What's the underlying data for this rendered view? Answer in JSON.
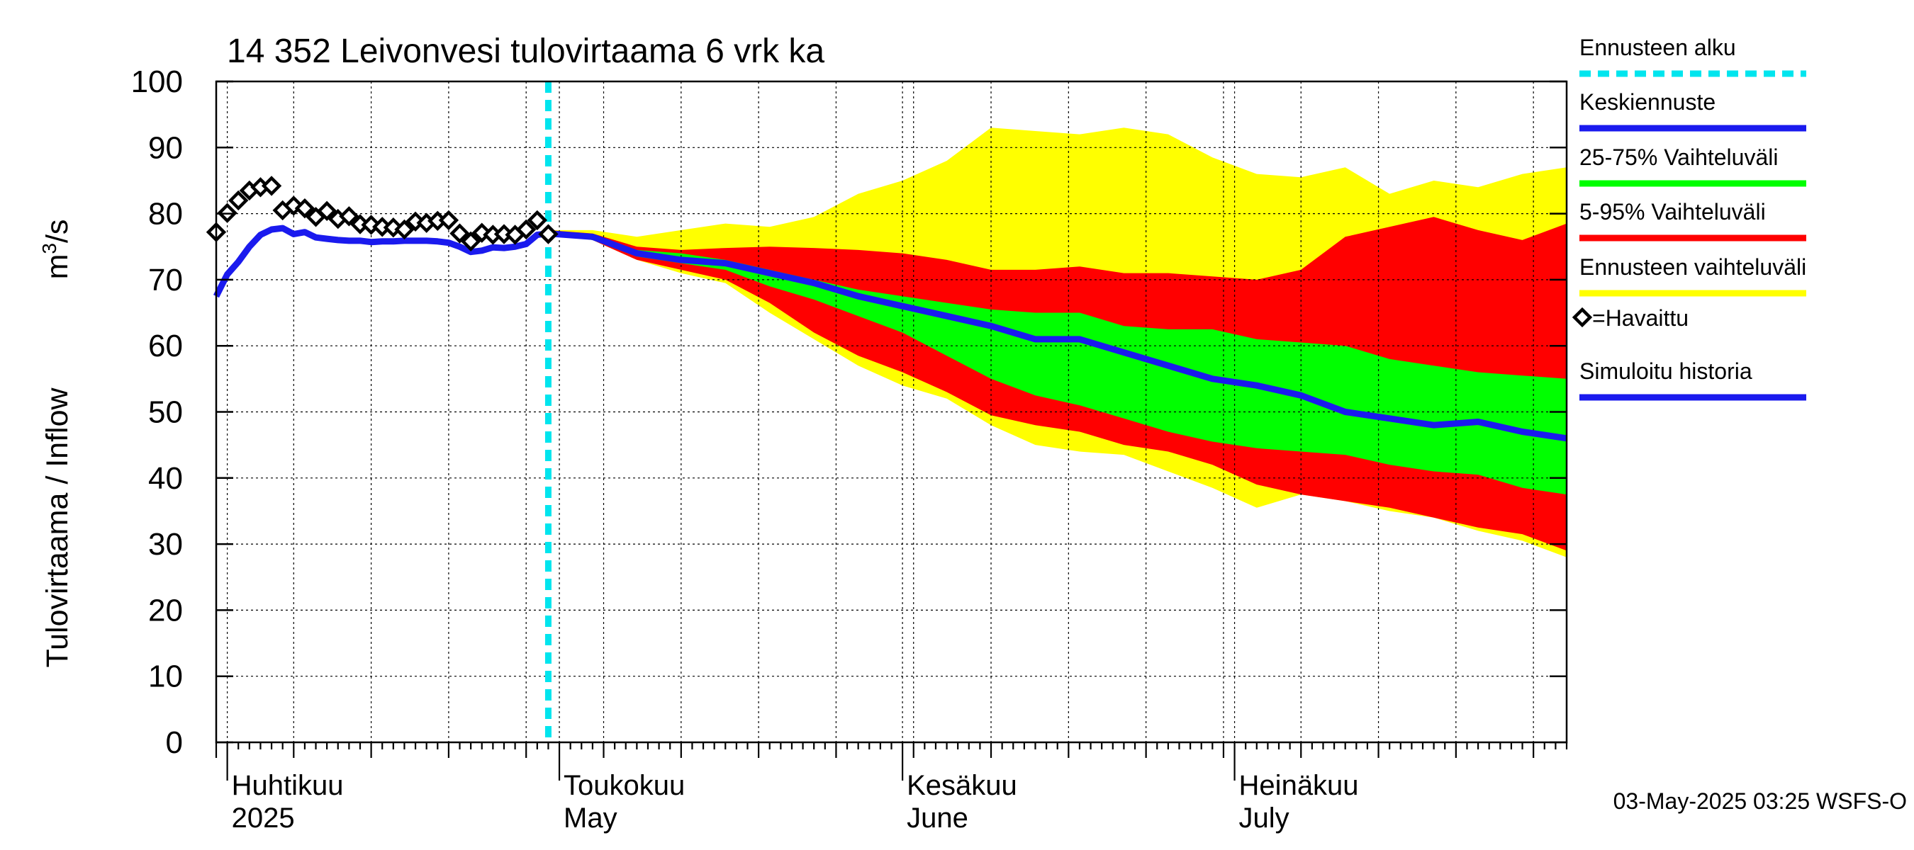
{
  "chart_data": {
    "type": "area",
    "title": "14 352 Leivonvesi tulovirtaama 6 vrk ka",
    "ylabel": "Tulovirtaama / Inflow",
    "yunit_base": "m",
    "yunit_sup": "3",
    "yunit_tail": "/s",
    "ylim": [
      0,
      100
    ],
    "yticks": [
      0,
      10,
      20,
      30,
      40,
      50,
      60,
      70,
      80,
      90,
      100
    ],
    "xlim": [
      "2025-03-31",
      "2025-07-31"
    ],
    "grid": true,
    "month_labels": [
      {
        "date": "2025-04-01",
        "fi": "Huhtikuu",
        "en": "2025"
      },
      {
        "date": "2025-05-01",
        "fi": "Toukokuu",
        "en": "May"
      },
      {
        "date": "2025-06-01",
        "fi": "Kesäkuu",
        "en": "June"
      },
      {
        "date": "2025-07-01",
        "fi": "Heinäkuu",
        "en": "July"
      }
    ],
    "forecast_start": "2025-04-30",
    "timestamp": "03-May-2025 03:25 WSFS-O",
    "legend": [
      {
        "key": "forecast_start",
        "label": "Ennusteen alku",
        "color": "#00e5ee",
        "style": "dashed"
      },
      {
        "key": "median",
        "label": "Keskiennuste",
        "color": "#1a1aee",
        "style": "line"
      },
      {
        "key": "p25_75",
        "label": "25-75% Vaihteluväli",
        "color": "#00ff00",
        "style": "line"
      },
      {
        "key": "p5_95",
        "label": "5-95% Vaihteluväli",
        "color": "#ff0000",
        "style": "line"
      },
      {
        "key": "range",
        "label": "Ennusteen vaihteluväli",
        "color": "#ffff00",
        "style": "line"
      },
      {
        "key": "observed",
        "label": "=Havaittu",
        "color": "#000000",
        "style": "diamond"
      },
      {
        "key": "simulated",
        "label": "Simuloitu historia",
        "color": "#1a1aee",
        "style": "line"
      }
    ],
    "observed": {
      "name": "=Havaittu",
      "points": [
        [
          "2025-03-31",
          77.2
        ],
        [
          "2025-04-01",
          80.1
        ],
        [
          "2025-04-02",
          82.0
        ],
        [
          "2025-04-03",
          83.5
        ],
        [
          "2025-04-04",
          84.0
        ],
        [
          "2025-04-05",
          84.2
        ],
        [
          "2025-04-06",
          80.5
        ],
        [
          "2025-04-07",
          81.2
        ],
        [
          "2025-04-08",
          80.8
        ],
        [
          "2025-04-09",
          79.5
        ],
        [
          "2025-04-10",
          80.4
        ],
        [
          "2025-04-11",
          79.2
        ],
        [
          "2025-04-12",
          79.6
        ],
        [
          "2025-04-13",
          78.4
        ],
        [
          "2025-04-14",
          78.3
        ],
        [
          "2025-04-15",
          78.0
        ],
        [
          "2025-04-16",
          77.9
        ],
        [
          "2025-04-17",
          77.6
        ],
        [
          "2025-04-18",
          78.8
        ],
        [
          "2025-04-19",
          78.6
        ],
        [
          "2025-04-20",
          78.9
        ],
        [
          "2025-04-21",
          79.0
        ],
        [
          "2025-04-22",
          77.0
        ],
        [
          "2025-04-23",
          75.8
        ],
        [
          "2025-04-24",
          77.1
        ],
        [
          "2025-04-25",
          76.8
        ],
        [
          "2025-04-26",
          76.9
        ],
        [
          "2025-04-27",
          76.8
        ],
        [
          "2025-04-28",
          77.6
        ],
        [
          "2025-04-29",
          79.0
        ],
        [
          "2025-04-30",
          76.9
        ]
      ]
    },
    "simulated": {
      "name": "Simuloitu historia",
      "points": [
        [
          "2025-03-31",
          67.5
        ],
        [
          "2025-04-01",
          70.8
        ],
        [
          "2025-04-02",
          72.7
        ],
        [
          "2025-04-03",
          75.0
        ],
        [
          "2025-04-04",
          76.8
        ],
        [
          "2025-04-05",
          77.6
        ],
        [
          "2025-04-06",
          77.8
        ],
        [
          "2025-04-07",
          76.9
        ],
        [
          "2025-04-08",
          77.2
        ],
        [
          "2025-04-09",
          76.4
        ],
        [
          "2025-04-10",
          76.2
        ],
        [
          "2025-04-11",
          76.0
        ],
        [
          "2025-04-12",
          75.9
        ],
        [
          "2025-04-13",
          75.9
        ],
        [
          "2025-04-14",
          75.7
        ],
        [
          "2025-04-15",
          75.8
        ],
        [
          "2025-04-16",
          75.8
        ],
        [
          "2025-04-17",
          75.9
        ],
        [
          "2025-04-18",
          75.9
        ],
        [
          "2025-04-19",
          75.9
        ],
        [
          "2025-04-20",
          75.8
        ],
        [
          "2025-04-21",
          75.6
        ],
        [
          "2025-04-22",
          75.0
        ],
        [
          "2025-04-23",
          74.2
        ],
        [
          "2025-04-24",
          74.4
        ],
        [
          "2025-04-25",
          74.9
        ],
        [
          "2025-04-26",
          74.8
        ],
        [
          "2025-04-27",
          75.0
        ],
        [
          "2025-04-28",
          75.4
        ],
        [
          "2025-04-29",
          76.8
        ],
        [
          "2025-04-30",
          77.0
        ]
      ]
    },
    "forecast": {
      "dates": [
        "2025-04-30",
        "2025-05-04",
        "2025-05-08",
        "2025-05-12",
        "2025-05-16",
        "2025-05-20",
        "2025-05-24",
        "2025-05-28",
        "2025-06-01",
        "2025-06-05",
        "2025-06-09",
        "2025-06-13",
        "2025-06-17",
        "2025-06-21",
        "2025-06-25",
        "2025-06-29",
        "2025-07-03",
        "2025-07-07",
        "2025-07-11",
        "2025-07-15",
        "2025-07-19",
        "2025-07-23",
        "2025-07-27",
        "2025-07-31"
      ],
      "range_max": [
        77.5,
        77.5,
        76.5,
        77.5,
        78.5,
        78.0,
        79.5,
        83.0,
        85.0,
        88.0,
        93.0,
        92.5,
        92.0,
        93.0,
        92.0,
        88.5,
        86.0,
        85.5,
        87.0,
        83.0,
        85.0,
        84.0,
        86.0,
        87.0
      ],
      "p95": [
        77.5,
        77.0,
        75.0,
        74.5,
        74.8,
        75.0,
        74.8,
        74.5,
        74.0,
        73.0,
        71.5,
        71.5,
        72.0,
        71.0,
        71.0,
        70.5,
        70.0,
        71.5,
        76.5,
        78.0,
        79.5,
        77.5,
        76.0,
        78.5
      ],
      "p75": [
        77.0,
        76.5,
        74.5,
        74.0,
        73.0,
        71.5,
        70.0,
        68.5,
        67.5,
        66.5,
        65.5,
        65.0,
        65.0,
        63.0,
        62.5,
        62.5,
        61.0,
        60.5,
        60.0,
        58.0,
        57.0,
        56.0,
        55.5,
        55.0
      ],
      "median": [
        77.0,
        76.5,
        74.0,
        73.0,
        72.5,
        71.0,
        69.5,
        67.5,
        66.0,
        64.5,
        63.0,
        61.0,
        61.0,
        59.0,
        57.0,
        55.0,
        54.0,
        52.5,
        50.0,
        49.0,
        48.0,
        48.5,
        47.0,
        46.0
      ],
      "p25": [
        77.0,
        76.0,
        73.5,
        72.5,
        71.5,
        69.0,
        67.0,
        64.5,
        62.0,
        58.5,
        55.0,
        52.5,
        51.0,
        49.0,
        47.0,
        45.5,
        44.5,
        44.0,
        43.5,
        42.0,
        41.0,
        40.5,
        38.5,
        37.5
      ],
      "p5": [
        77.0,
        76.0,
        73.0,
        71.5,
        70.0,
        66.5,
        62.0,
        58.5,
        56.0,
        53.0,
        49.5,
        48.0,
        47.0,
        45.0,
        44.0,
        42.0,
        39.0,
        37.5,
        36.5,
        35.5,
        34.0,
        32.5,
        31.5,
        29.0
      ],
      "range_min": [
        77.0,
        76.0,
        73.0,
        71.0,
        69.5,
        65.0,
        61.0,
        57.0,
        54.0,
        52.0,
        48.0,
        45.0,
        44.0,
        43.5,
        41.0,
        38.5,
        35.5,
        37.5,
        36.5,
        35.0,
        34.0,
        32.0,
        30.5,
        28.0
      ]
    }
  }
}
